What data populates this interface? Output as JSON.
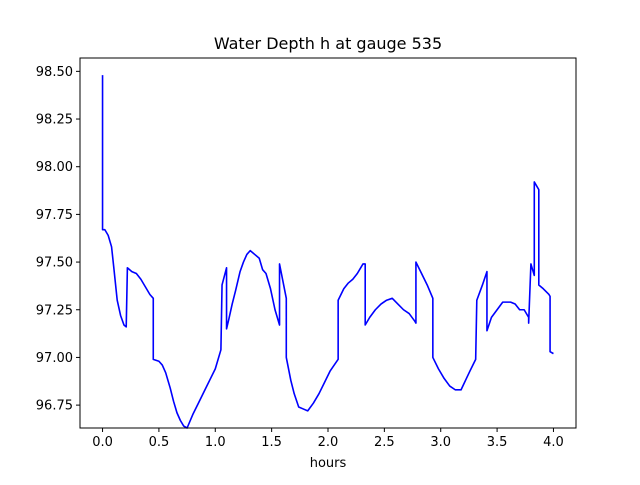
{
  "chart_data": {
    "type": "line",
    "title": "Water Depth h at gauge 535",
    "xlabel": "hours",
    "ylabel": "",
    "xlim": [
      -0.2,
      4.2
    ],
    "ylim": [
      96.63,
      98.57
    ],
    "xticks": [
      0.0,
      0.5,
      1.0,
      1.5,
      2.0,
      2.5,
      3.0,
      3.5,
      4.0
    ],
    "xtick_labels": [
      "0.0",
      "0.5",
      "1.0",
      "1.5",
      "2.0",
      "2.5",
      "3.0",
      "3.5",
      "4.0"
    ],
    "yticks": [
      96.75,
      97.0,
      97.25,
      97.5,
      97.75,
      98.0,
      98.25,
      98.5
    ],
    "ytick_labels": [
      "96.75",
      "97.00",
      "97.25",
      "97.50",
      "97.75",
      "98.00",
      "98.25",
      "98.50"
    ],
    "grid": false,
    "legend": "none",
    "series": [
      {
        "color": "#0000ff",
        "x": [
          0.0,
          0.0,
          0.0,
          0.02,
          0.05,
          0.08,
          0.1,
          0.13,
          0.16,
          0.19,
          0.21,
          0.22,
          0.22,
          0.26,
          0.3,
          0.34,
          0.38,
          0.42,
          0.45,
          0.45,
          0.5,
          0.53,
          0.56,
          0.6,
          0.63,
          0.66,
          0.69,
          0.72,
          0.75,
          0.8,
          0.85,
          0.9,
          0.95,
          1.0,
          1.05,
          1.06,
          1.1,
          1.1,
          1.12,
          1.15,
          1.18,
          1.22,
          1.25,
          1.28,
          1.31,
          1.35,
          1.39,
          1.42,
          1.45,
          1.49,
          1.53,
          1.57,
          1.57,
          1.63,
          1.63,
          1.67,
          1.7,
          1.74,
          1.78,
          1.82,
          1.87,
          1.92,
          1.97,
          2.02,
          2.09,
          2.09,
          2.14,
          2.18,
          2.22,
          2.26,
          2.29,
          2.31,
          2.33,
          2.33,
          2.37,
          2.42,
          2.47,
          2.52,
          2.57,
          2.62,
          2.67,
          2.72,
          2.77,
          2.78,
          2.78,
          2.83,
          2.88,
          2.93,
          2.93,
          2.98,
          3.03,
          3.08,
          3.13,
          3.18,
          3.22,
          3.26,
          3.31,
          3.32,
          3.37,
          3.41,
          3.41,
          3.45,
          3.5,
          3.55,
          3.58,
          3.62,
          3.66,
          3.7,
          3.74,
          3.78,
          3.78,
          3.8,
          3.83,
          3.83,
          3.85,
          3.87,
          3.87,
          3.91,
          3.96,
          3.97,
          3.97,
          4.0
        ],
        "y": [
          98.48,
          97.99,
          97.67,
          97.67,
          97.64,
          97.58,
          97.47,
          97.3,
          97.22,
          97.17,
          97.16,
          97.46,
          97.47,
          97.45,
          97.44,
          97.41,
          97.37,
          97.33,
          97.31,
          96.99,
          96.98,
          96.96,
          96.92,
          96.84,
          96.77,
          96.71,
          96.67,
          96.64,
          96.63,
          96.7,
          96.76,
          96.82,
          96.88,
          96.94,
          97.04,
          97.38,
          97.47,
          97.15,
          97.2,
          97.28,
          97.35,
          97.45,
          97.5,
          97.54,
          97.56,
          97.54,
          97.52,
          97.46,
          97.44,
          97.36,
          97.25,
          97.17,
          97.49,
          97.31,
          97.0,
          96.88,
          96.81,
          96.74,
          96.73,
          96.72,
          96.76,
          96.81,
          96.87,
          96.93,
          96.99,
          97.3,
          97.36,
          97.39,
          97.41,
          97.44,
          97.47,
          97.49,
          97.49,
          97.17,
          97.21,
          97.25,
          97.28,
          97.3,
          97.31,
          97.28,
          97.25,
          97.23,
          97.19,
          97.18,
          97.5,
          97.44,
          97.38,
          97.31,
          97.0,
          96.94,
          96.89,
          96.85,
          96.83,
          96.83,
          96.88,
          96.93,
          96.99,
          97.3,
          97.38,
          97.45,
          97.14,
          97.21,
          97.25,
          97.29,
          97.29,
          97.29,
          97.28,
          97.25,
          97.25,
          97.21,
          97.18,
          97.49,
          97.43,
          97.92,
          97.9,
          97.88,
          97.38,
          97.36,
          97.33,
          97.32,
          97.03,
          97.02
        ]
      }
    ]
  }
}
